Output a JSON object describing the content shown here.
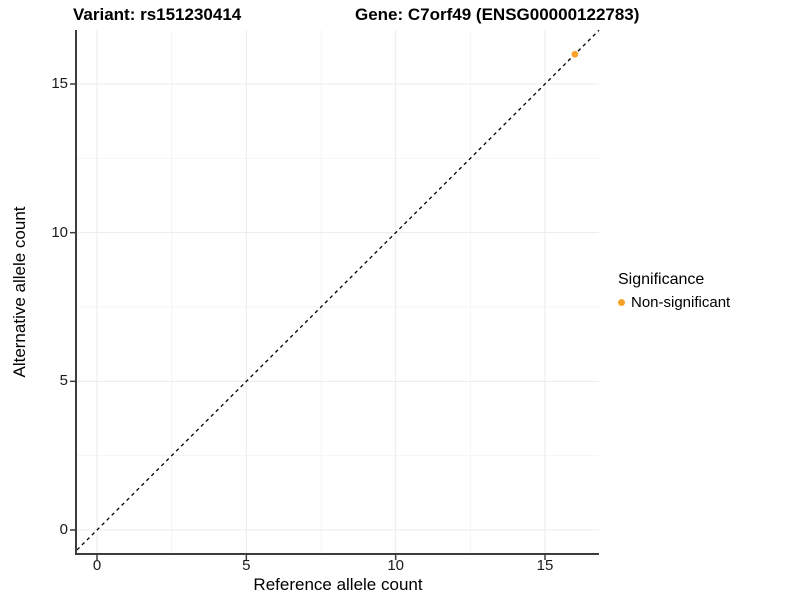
{
  "header": {
    "variant_title": "Variant: rs151230414",
    "gene_title": "Gene: C7orf49 (ENSG00000122783)"
  },
  "chart_data": {
    "type": "scatter",
    "xlabel": "Reference allele count",
    "ylabel": "Alternative allele count",
    "x_ticks": [
      0,
      5,
      10,
      15
    ],
    "y_ticks": [
      0,
      5,
      10,
      15
    ],
    "x_minor_ticks": [
      2.5,
      7.5,
      12.5
    ],
    "y_minor_ticks": [
      2.5,
      7.5,
      12.5
    ],
    "xlim": [
      -0.7,
      16.8
    ],
    "ylim": [
      -0.8,
      16.8
    ],
    "grid": "major+minor",
    "series": [
      {
        "name": "Non-significant",
        "color": "#F9A22B",
        "points": [
          {
            "x": 16,
            "y": 16
          }
        ]
      }
    ],
    "reference_line": {
      "kind": "identity y=x",
      "style": "dashed",
      "color": "#000000"
    },
    "legend": {
      "position": "right",
      "title": "Significance",
      "entries": [
        {
          "label": "Non-significant",
          "color": "#F9A22B"
        }
      ]
    }
  },
  "colors": {
    "background": "#FFFFFF",
    "axis_line": "#3C3C3C",
    "tick_label": "#1A1A1A",
    "grid_major": "#EBEBEB",
    "grid_minor": "#F5F5F5",
    "point_orange": "#F9A22B"
  }
}
